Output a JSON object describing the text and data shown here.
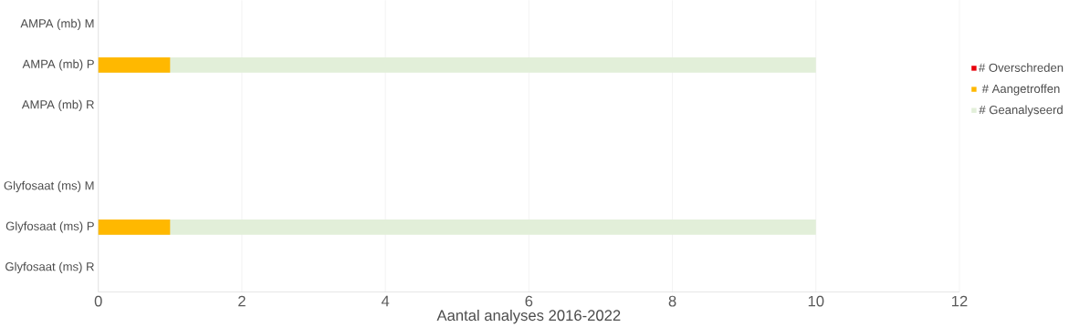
{
  "chart_data": {
    "type": "bar",
    "orientation": "horizontal",
    "categories": [
      "AMPA (mb)   M",
      "AMPA (mb)   P",
      "AMPA (mb)   R",
      null,
      "Glyfosaat (ms)   M",
      "Glyfosaat (ms)   P",
      "Glyfosaat (ms)   R"
    ],
    "series": [
      {
        "name": "# Overschreden",
        "color": "#e8000b",
        "values": [
          0,
          0,
          0,
          null,
          0,
          0,
          0
        ]
      },
      {
        "name": "# Aangetroffen",
        "color": "#ffb800",
        "values": [
          0,
          1,
          0,
          null,
          0,
          1,
          0
        ]
      },
      {
        "name": "# Geanalyseerd",
        "color": "#e2efd9",
        "values": [
          0,
          10,
          0,
          null,
          0,
          10,
          0
        ]
      }
    ],
    "xlabel": "Aantal analyses 2016-2022",
    "xlim": [
      0,
      12
    ],
    "xticks": [
      0,
      2,
      4,
      6,
      8,
      10,
      12
    ],
    "grid": "x",
    "legend": "right"
  }
}
